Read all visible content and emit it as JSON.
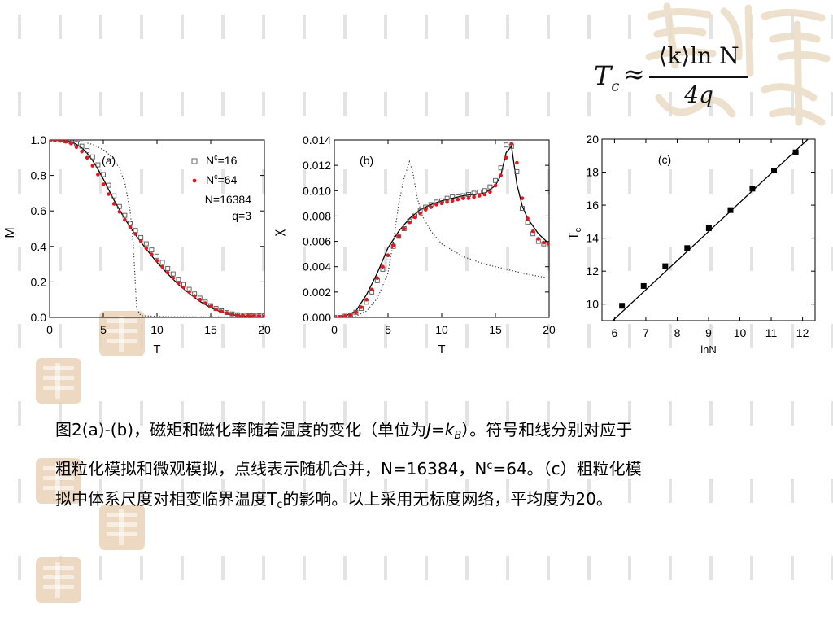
{
  "formula": {
    "lhs": "T",
    "lhs_sub": "c",
    "approx": "≈",
    "numerator": "⟨k⟩ln N",
    "denominator": "4q"
  },
  "caption": {
    "line1_a": "图2(a)-(b)，磁矩和磁化率随着温度的变化（单位为",
    "line1_J": "J",
    "line1_eq": "=",
    "line1_k": "k",
    "line1_B": "B",
    "line1_b": "）。符号和线分别对应于",
    "line2_a": "粗粒化模拟和微观模拟，点线表示随机合并，N=16384，N",
    "line2_sup": "c",
    "line2_b": "=64。（c）粗粒化模",
    "line3_a": "拟中体系尺度对相变临界温度T",
    "line3_sub": "c",
    "line3_b": "的影响。以上采用无标度网络，平均度为20。"
  },
  "chart_data": [
    {
      "type": "line",
      "panel_label": "(a)",
      "xlabel": "T",
      "ylabel": "M",
      "xlim": [
        0,
        20
      ],
      "ylim": [
        0,
        1.0
      ],
      "xticks": [
        0,
        5,
        10,
        15,
        20
      ],
      "yticks": [
        0.0,
        0.2,
        0.4,
        0.6,
        0.8,
        1.0
      ],
      "x_tick_labels": [
        "0",
        "5",
        "10",
        "15",
        "20"
      ],
      "y_tick_labels": [
        "0.0",
        "0.2",
        "0.4",
        "0.6",
        "0.8",
        "1.0"
      ],
      "legend": {
        "entries": [
          {
            "label_main": "N",
            "label_sup": "c",
            "label_rest": "=16",
            "marker": "open-square",
            "color": "#555555"
          },
          {
            "label_main": "N",
            "label_sup": "c",
            "label_rest": "=64",
            "marker": "dot",
            "color": "#e8141c"
          }
        ],
        "notes": [
          "N=16384",
          "q=3"
        ],
        "placement": "top-right"
      },
      "series": [
        {
          "style": "solid",
          "color": "#000000",
          "x": [
            0,
            1,
            2,
            2.5,
            3,
            3.5,
            4,
            4.5,
            5,
            5.5,
            6,
            7,
            8,
            9,
            10,
            11,
            12,
            13,
            14,
            15,
            16,
            17,
            18,
            19,
            20
          ],
          "y": [
            1.0,
            1.0,
            0.99,
            0.975,
            0.955,
            0.925,
            0.885,
            0.835,
            0.78,
            0.72,
            0.66,
            0.555,
            0.465,
            0.385,
            0.31,
            0.245,
            0.185,
            0.135,
            0.09,
            0.055,
            0.03,
            0.015,
            0.007,
            0.003,
            0.001
          ]
        },
        {
          "style": "dotted",
          "color": "#333333",
          "x": [
            0,
            1,
            2,
            3,
            4,
            5,
            5.5,
            6,
            6.5,
            7,
            7.5,
            7.8,
            8.1,
            8.5,
            10,
            12,
            15,
            17,
            20
          ],
          "y": [
            1.0,
            1.0,
            0.997,
            0.99,
            0.975,
            0.945,
            0.92,
            0.89,
            0.84,
            0.76,
            0.6,
            0.4,
            0.05,
            0.01,
            0.005,
            0.003,
            0.003,
            0.002,
            0.002
          ]
        },
        {
          "style": "open-square",
          "color": "#555555",
          "x": [
            0,
            0.5,
            1,
            1.5,
            2,
            2.5,
            3,
            3.5,
            4,
            4.5,
            5,
            5.5,
            6,
            6.5,
            7,
            7.5,
            8,
            8.5,
            9,
            9.5,
            10,
            10.5,
            11,
            11.5,
            12,
            12.5,
            13,
            13.5,
            14,
            14.5,
            15,
            15.5,
            16,
            16.5,
            17,
            17.5,
            18,
            18.5,
            19,
            19.5,
            20
          ],
          "y": [
            1.0,
            1.0,
            1.0,
            0.995,
            0.99,
            0.98,
            0.965,
            0.94,
            0.905,
            0.86,
            0.805,
            0.745,
            0.685,
            0.625,
            0.575,
            0.53,
            0.49,
            0.45,
            0.415,
            0.38,
            0.345,
            0.31,
            0.275,
            0.245,
            0.215,
            0.185,
            0.158,
            0.132,
            0.108,
            0.086,
            0.066,
            0.05,
            0.037,
            0.027,
            0.02,
            0.015,
            0.012,
            0.01,
            0.01,
            0.009,
            0.009
          ]
        },
        {
          "style": "dot",
          "color": "#e8141c",
          "x": [
            0,
            0.5,
            1,
            1.5,
            2,
            2.5,
            3,
            3.5,
            4,
            4.5,
            5,
            5.5,
            6,
            6.5,
            7,
            7.5,
            8,
            8.5,
            9,
            9.5,
            10,
            10.5,
            11,
            11.5,
            12,
            12.5,
            13,
            13.5,
            14,
            14.5,
            15,
            15.5,
            16,
            16.5,
            17,
            17.5,
            18,
            18.5,
            19,
            19.5,
            20
          ],
          "y": [
            1.0,
            1.0,
            0.995,
            0.99,
            0.98,
            0.96,
            0.935,
            0.9,
            0.855,
            0.805,
            0.75,
            0.695,
            0.64,
            0.595,
            0.55,
            0.51,
            0.47,
            0.43,
            0.39,
            0.355,
            0.32,
            0.285,
            0.252,
            0.222,
            0.194,
            0.168,
            0.143,
            0.12,
            0.1,
            0.08,
            0.062,
            0.046,
            0.034,
            0.025,
            0.018,
            0.013,
            0.01,
            0.009,
            0.008,
            0.008,
            0.008
          ]
        }
      ]
    },
    {
      "type": "line",
      "panel_label": "(b)",
      "xlabel": "T",
      "ylabel": "χ",
      "xlim": [
        0,
        20
      ],
      "ylim": [
        0,
        0.014
      ],
      "xticks": [
        0,
        5,
        10,
        15,
        20
      ],
      "yticks": [
        0,
        0.002,
        0.004,
        0.006,
        0.008,
        0.01,
        0.012,
        0.014
      ],
      "x_tick_labels": [
        "0",
        "5",
        "10",
        "15",
        "20"
      ],
      "y_tick_labels": [
        "0.000",
        "0.002",
        "0.004",
        "0.006",
        "0.008",
        "0.010",
        "0.012",
        "0.014"
      ],
      "series": [
        {
          "style": "solid",
          "color": "#000000",
          "x": [
            0,
            1,
            2,
            3,
            4,
            5,
            6,
            7,
            8,
            9,
            10,
            11,
            12,
            13,
            14,
            15,
            15.5,
            16,
            16.5,
            17,
            17.5,
            18,
            19,
            20
          ],
          "y": [
            0,
            0.0001,
            0.0005,
            0.0018,
            0.0035,
            0.0055,
            0.0068,
            0.0078,
            0.0085,
            0.0089,
            0.0092,
            0.0094,
            0.0096,
            0.0097,
            0.0098,
            0.0104,
            0.0112,
            0.013,
            0.0135,
            0.0105,
            0.0088,
            0.0078,
            0.0066,
            0.0058
          ]
        },
        {
          "style": "dotted",
          "color": "#333333",
          "x": [
            0,
            2,
            3,
            4,
            5,
            5.5,
            6,
            6.5,
            7,
            7.3,
            7.7,
            8.2,
            9,
            10,
            12,
            14,
            16,
            18,
            20
          ],
          "y": [
            0,
            0.0001,
            0.0005,
            0.0015,
            0.0035,
            0.006,
            0.009,
            0.011,
            0.0123,
            0.0115,
            0.0095,
            0.008,
            0.0068,
            0.0058,
            0.0048,
            0.0042,
            0.0038,
            0.0034,
            0.0031
          ]
        },
        {
          "style": "open-square",
          "color": "#555555",
          "x": [
            0,
            0.5,
            1,
            1.5,
            2,
            2.5,
            3,
            3.5,
            4,
            4.5,
            5,
            5.5,
            6,
            6.5,
            7,
            7.5,
            8,
            8.5,
            9,
            9.5,
            10,
            10.5,
            11,
            11.5,
            12,
            12.5,
            13,
            13.5,
            14,
            14.5,
            15,
            15.5,
            16,
            16.5,
            17,
            17.5,
            18,
            18.5,
            19,
            19.5,
            20
          ],
          "y": [
            0,
            0,
            0.0001,
            0.0002,
            0.0004,
            0.0007,
            0.0012,
            0.002,
            0.0029,
            0.0038,
            0.0047,
            0.0056,
            0.0064,
            0.007,
            0.0076,
            0.008,
            0.0084,
            0.0087,
            0.0089,
            0.0091,
            0.0092,
            0.0094,
            0.0095,
            0.0095,
            0.0096,
            0.0097,
            0.0098,
            0.0099,
            0.01,
            0.0103,
            0.0108,
            0.0118,
            0.0136,
            0.0135,
            0.0115,
            0.0086,
            0.0075,
            0.0066,
            0.006,
            0.0058,
            0.0058
          ]
        },
        {
          "style": "dot",
          "color": "#e8141c",
          "x": [
            0,
            0.5,
            1,
            1.5,
            2,
            2.5,
            3,
            3.5,
            4,
            4.5,
            5,
            5.5,
            6,
            6.5,
            7,
            7.5,
            8,
            8.5,
            9,
            9.5,
            10,
            10.5,
            11,
            11.5,
            12,
            12.5,
            13,
            13.5,
            14,
            14.5,
            15,
            15.5,
            16,
            16.5,
            17,
            17.5,
            18,
            18.5,
            19,
            19.5,
            20
          ],
          "y": [
            0,
            0,
            0.0001,
            0.0002,
            0.0004,
            0.0008,
            0.0014,
            0.0022,
            0.0031,
            0.004,
            0.0049,
            0.0057,
            0.0064,
            0.007,
            0.0075,
            0.0079,
            0.0082,
            0.0085,
            0.0087,
            0.0089,
            0.009,
            0.0091,
            0.0092,
            0.0093,
            0.0094,
            0.0094,
            0.0095,
            0.0096,
            0.0097,
            0.0099,
            0.0104,
            0.0112,
            0.0126,
            0.0137,
            0.0122,
            0.0094,
            0.0078,
            0.0068,
            0.0062,
            0.0059,
            0.0058
          ]
        }
      ]
    },
    {
      "type": "scatter",
      "panel_label": "(c)",
      "xlabel": "lnN",
      "ylabel_main": "T",
      "ylabel_sub": "c",
      "xlim": [
        5.6,
        12.4
      ],
      "ylim": [
        9,
        20
      ],
      "xticks": [
        6,
        7,
        8,
        9,
        10,
        11,
        12
      ],
      "yticks": [
        10,
        12,
        14,
        16,
        18,
        20
      ],
      "x_tick_labels": [
        "6",
        "7",
        "8",
        "9",
        "10",
        "11",
        "12"
      ],
      "y_tick_labels": [
        "10",
        "12",
        "14",
        "16",
        "18",
        "20"
      ],
      "series": [
        {
          "style": "filled-square",
          "color": "#000000",
          "x": [
            6.24,
            6.93,
            7.62,
            8.32,
            9.01,
            9.7,
            10.4,
            11.09,
            11.78
          ],
          "y": [
            9.9,
            11.1,
            12.3,
            13.4,
            14.6,
            15.7,
            17.0,
            18.1,
            19.2
          ]
        },
        {
          "style": "solid",
          "color": "#000000",
          "x": [
            5.6,
            12.4
          ],
          "y": [
            8.4,
            20.4
          ]
        }
      ]
    }
  ]
}
